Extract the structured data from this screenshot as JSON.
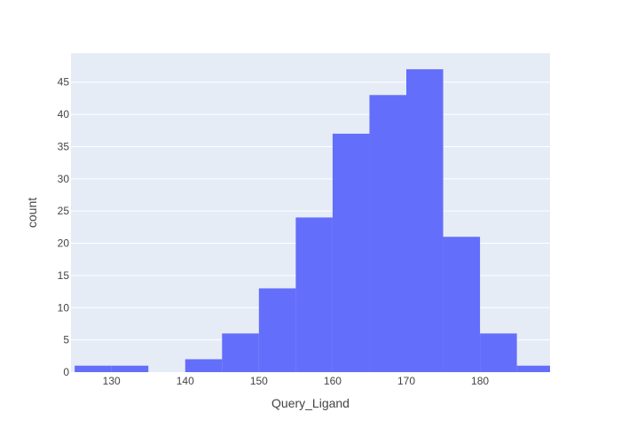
{
  "chart_data": {
    "type": "bar",
    "subtype": "histogram",
    "title": "",
    "xlabel": "Query_Ligand",
    "ylabel": "count",
    "bin_size": 5,
    "bins": [
      {
        "start": 125,
        "end": 130,
        "count": 1
      },
      {
        "start": 130,
        "end": 135,
        "count": 1
      },
      {
        "start": 135,
        "end": 140,
        "count": 0
      },
      {
        "start": 140,
        "end": 145,
        "count": 2
      },
      {
        "start": 145,
        "end": 150,
        "count": 6
      },
      {
        "start": 150,
        "end": 155,
        "count": 13
      },
      {
        "start": 155,
        "end": 160,
        "count": 24
      },
      {
        "start": 160,
        "end": 165,
        "count": 37
      },
      {
        "start": 165,
        "end": 170,
        "count": 43
      },
      {
        "start": 170,
        "end": 175,
        "count": 47
      },
      {
        "start": 175,
        "end": 180,
        "count": 21
      },
      {
        "start": 180,
        "end": 185,
        "count": 6
      },
      {
        "start": 185,
        "end": 190,
        "count": 1
      }
    ],
    "xlim": [
      124.5,
      189.5
    ],
    "ylim": [
      0,
      49.5
    ],
    "x_ticks": [
      130,
      140,
      150,
      160,
      170,
      180
    ],
    "y_ticks": [
      0,
      5,
      10,
      15,
      20,
      25,
      30,
      35,
      40,
      45
    ],
    "grid": true,
    "legend": "none",
    "colors": {
      "bar": "#636efa",
      "plot_background": "#e5ecf6",
      "grid": "#ffffff",
      "text": "#444444"
    }
  }
}
